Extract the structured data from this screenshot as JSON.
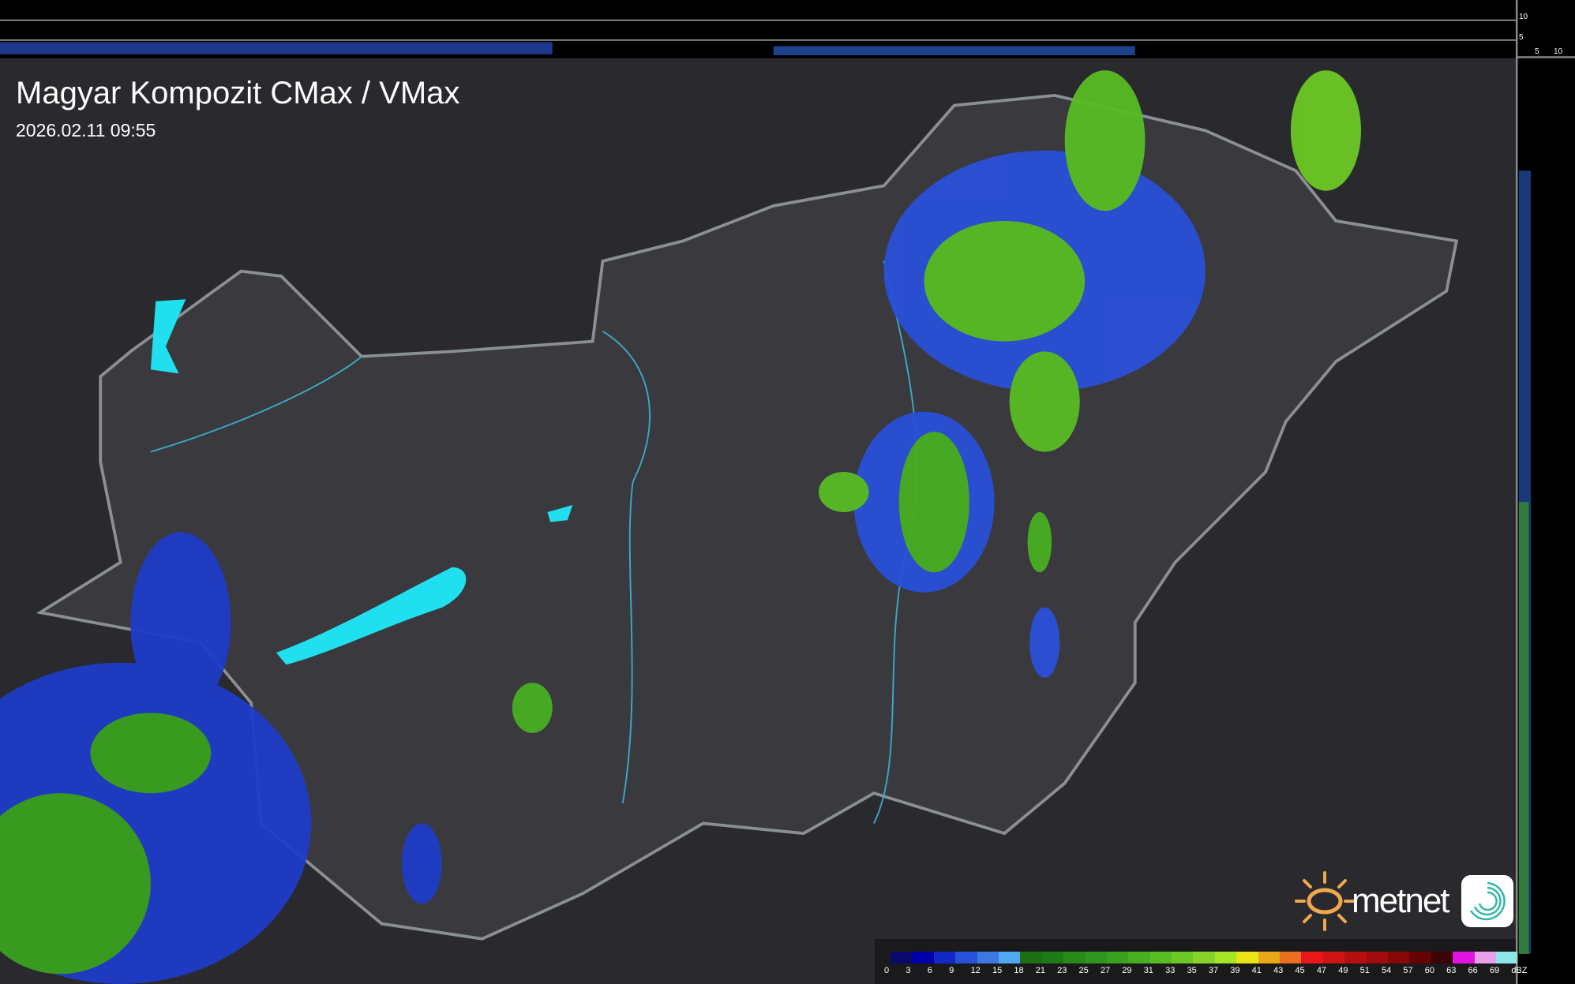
{
  "header": {
    "title": "Magyar Kompozit CMax / VMax",
    "timestamp": "2026.02.11 09:55"
  },
  "side_scales": {
    "vertical_ticks": [
      "10",
      "5"
    ],
    "horizontal_ticks": [
      "5",
      "10"
    ]
  },
  "legend": {
    "unit": "dBZ",
    "labels": [
      "0",
      "3",
      "6",
      "9",
      "12",
      "15",
      "18",
      "21",
      "23",
      "25",
      "27",
      "29",
      "31",
      "33",
      "35",
      "37",
      "39",
      "41",
      "43",
      "45",
      "47",
      "49",
      "51",
      "54",
      "57",
      "60",
      "63",
      "66",
      "69"
    ],
    "colors": [
      "#0a0a6e",
      "#0000a8",
      "#1428c8",
      "#2850d8",
      "#3c78e0",
      "#50a8f0",
      "#1e6e14",
      "#1e7a14",
      "#288a18",
      "#309620",
      "#3aa020",
      "#48ae22",
      "#58bc24",
      "#6cc824",
      "#86d42a",
      "#a6e428",
      "#e8e418",
      "#e8a818",
      "#e87020",
      "#e81818",
      "#d01414",
      "#b41010",
      "#a00c0c",
      "#880808",
      "#640404",
      "#3c0404",
      "#e014e0",
      "#e8a0e8",
      "#8ce8e8"
    ]
  },
  "logo": {
    "brand": "metnet"
  },
  "colors": {
    "background": "#2e2e32",
    "country": "#3a3a3e",
    "border": "#8a8f96",
    "rivers": "#3aa8c8",
    "lakes": "#20e0f0"
  }
}
